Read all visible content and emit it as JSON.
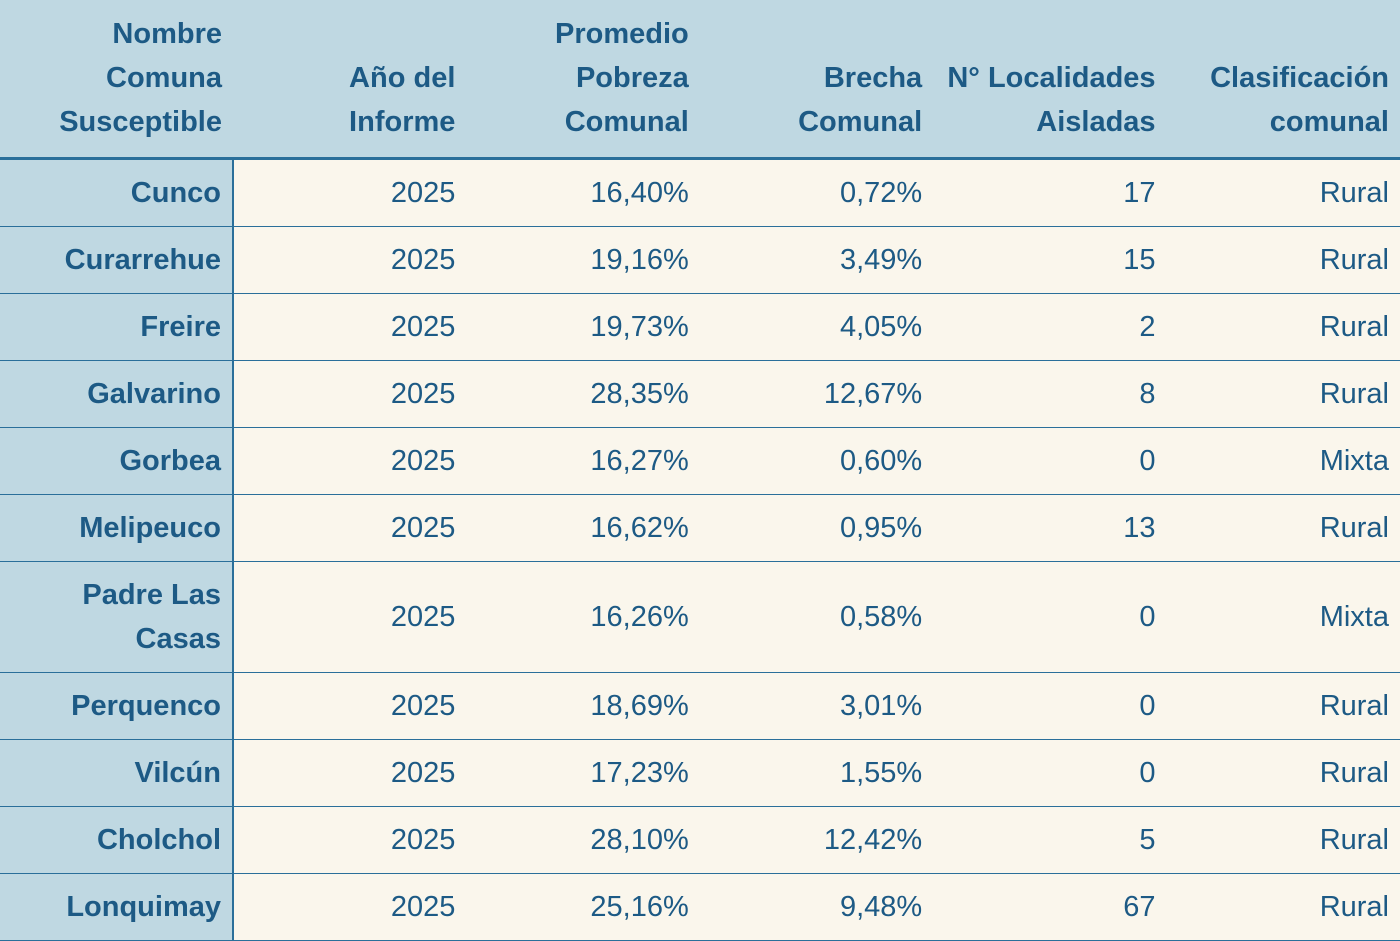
{
  "table": {
    "headers": [
      "Nombre Comuna Susceptible",
      "Año del Informe",
      "Promedio Pobreza Comunal",
      "Brecha Comunal",
      "N° Localidades Aisladas",
      "Clasificación comunal"
    ],
    "rows": [
      [
        "Cunco",
        "2025",
        "16,40%",
        "0,72%",
        "17",
        "Rural"
      ],
      [
        "Curarrehue",
        "2025",
        "19,16%",
        "3,49%",
        "15",
        "Rural"
      ],
      [
        "Freire",
        "2025",
        "19,73%",
        "4,05%",
        "2",
        "Rural"
      ],
      [
        "Galvarino",
        "2025",
        "28,35%",
        "12,67%",
        "8",
        "Rural"
      ],
      [
        "Gorbea",
        "2025",
        "16,27%",
        "0,60%",
        "0",
        "Mixta"
      ],
      [
        "Melipeuco",
        "2025",
        "16,62%",
        "0,95%",
        "13",
        "Rural"
      ],
      [
        "Padre Las Casas",
        "2025",
        "16,26%",
        "0,58%",
        "0",
        "Mixta"
      ],
      [
        "Perquenco",
        "2025",
        "18,69%",
        "3,01%",
        "0",
        "Rural"
      ],
      [
        "Vilcún",
        "2025",
        "17,23%",
        "1,55%",
        "0",
        "Rural"
      ],
      [
        "Cholchol",
        "2025",
        "28,10%",
        "12,42%",
        "5",
        "Rural"
      ],
      [
        "Lonquimay",
        "2025",
        "25,16%",
        "9,48%",
        "67",
        "Rural"
      ]
    ]
  }
}
